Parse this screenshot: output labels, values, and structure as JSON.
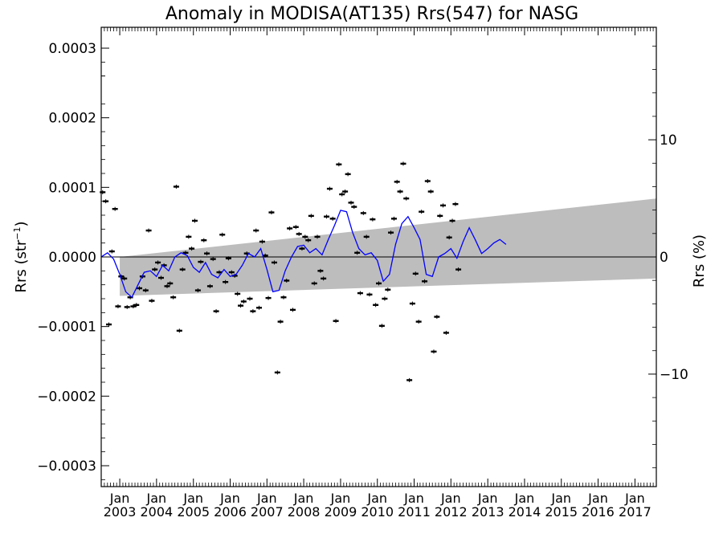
{
  "chart_data": {
    "type": "scatter",
    "title": "Anomaly in MODISA(AT135) Rrs(547) for NASG",
    "ylabel": "Rrs (str",
    "ylabel_sup": "−1",
    "ylabel_close": ")",
    "y2label": "Rrs (%)",
    "xlim": [
      "2002-07-01",
      "2017-08-01"
    ],
    "ylim": [
      -0.00033,
      0.00033
    ],
    "y2lim": [
      -19.6,
      19.6
    ],
    "yticks": [
      {
        "value": 0.0003,
        "label": "0.0003"
      },
      {
        "value": 0.0002,
        "label": "0.0002"
      },
      {
        "value": 0.0001,
        "label": "0.0001"
      },
      {
        "value": 0.0,
        "label": "0.0000"
      },
      {
        "value": -0.0001,
        "label": "−0.0001"
      },
      {
        "value": -0.0002,
        "label": "−0.0002"
      },
      {
        "value": -0.0003,
        "label": "−0.0003"
      }
    ],
    "y2ticks": [
      {
        "value": 10,
        "label": "10"
      },
      {
        "value": 0,
        "label": "0"
      },
      {
        "value": -10,
        "label": "−10"
      }
    ],
    "xticks": [
      {
        "date": "2003-01-01",
        "month": "Jan",
        "year": "2003"
      },
      {
        "date": "2004-01-01",
        "month": "Jan",
        "year": "2004"
      },
      {
        "date": "2005-01-01",
        "month": "Jan",
        "year": "2005"
      },
      {
        "date": "2006-01-01",
        "month": "Jan",
        "year": "2006"
      },
      {
        "date": "2007-01-01",
        "month": "Jan",
        "year": "2007"
      },
      {
        "date": "2008-01-01",
        "month": "Jan",
        "year": "2008"
      },
      {
        "date": "2009-01-01",
        "month": "Jan",
        "year": "2009"
      },
      {
        "date": "2010-01-01",
        "month": "Jan",
        "year": "2010"
      },
      {
        "date": "2011-01-01",
        "month": "Jan",
        "year": "2011"
      },
      {
        "date": "2012-01-01",
        "month": "Jan",
        "year": "2012"
      },
      {
        "date": "2013-01-01",
        "month": "Jan",
        "year": "2013"
      },
      {
        "date": "2014-01-01",
        "month": "Jan",
        "year": "2014"
      },
      {
        "date": "2015-01-01",
        "month": "Jan",
        "year": "2015"
      },
      {
        "date": "2016-01-01",
        "month": "Jan",
        "year": "2016"
      },
      {
        "date": "2017-01-01",
        "month": "Jan",
        "year": "2017"
      }
    ],
    "band": {
      "x": [
        "2003-01-01",
        "2017-08-01"
      ],
      "upper": [
        0.0,
        8.4e-05
      ],
      "lower": [
        -5.6e-05,
        -3.1e-05
      ]
    },
    "monthly_anomalies": [
      {
        "x": "2002-07-15",
        "y": 9.3e-05
      },
      {
        "x": "2002-08-15",
        "y": 8e-05
      },
      {
        "x": "2002-09-15",
        "y": -9.7e-05
      },
      {
        "x": "2002-10-15",
        "y": 8e-06
      },
      {
        "x": "2002-11-15",
        "y": 6.9e-05
      },
      {
        "x": "2002-12-15",
        "y": -7.1e-05
      },
      {
        "x": "2003-01-15",
        "y": -2.8e-05
      },
      {
        "x": "2003-02-15",
        "y": -3.1e-05
      },
      {
        "x": "2003-03-15",
        "y": -7.2e-05
      },
      {
        "x": "2003-04-15",
        "y": -5.8e-05
      },
      {
        "x": "2003-05-15",
        "y": -7.1e-05
      },
      {
        "x": "2003-06-15",
        "y": -6.9e-05
      },
      {
        "x": "2003-07-15",
        "y": -4.5e-05
      },
      {
        "x": "2003-08-15",
        "y": -2.8e-05
      },
      {
        "x": "2003-09-15",
        "y": -4.8e-05
      },
      {
        "x": "2003-10-15",
        "y": 3.8e-05
      },
      {
        "x": "2003-11-15",
        "y": -6.3e-05
      },
      {
        "x": "2003-12-15",
        "y": -1.8e-05
      },
      {
        "x": "2004-01-15",
        "y": -8e-06
      },
      {
        "x": "2004-02-15",
        "y": -3e-05
      },
      {
        "x": "2004-03-15",
        "y": -1.2e-05
      },
      {
        "x": "2004-04-15",
        "y": -4.2e-05
      },
      {
        "x": "2004-05-15",
        "y": -3.8e-05
      },
      {
        "x": "2004-06-15",
        "y": -5.8e-05
      },
      {
        "x": "2004-07-15",
        "y": 0.000101
      },
      {
        "x": "2004-08-15",
        "y": -0.000106
      },
      {
        "x": "2004-09-15",
        "y": -1.8e-05
      },
      {
        "x": "2004-10-15",
        "y": 6e-06
      },
      {
        "x": "2004-11-15",
        "y": 2.9e-05
      },
      {
        "x": "2004-12-15",
        "y": 1.2e-05
      },
      {
        "x": "2005-01-15",
        "y": 5.2e-05
      },
      {
        "x": "2005-02-15",
        "y": -4.8e-05
      },
      {
        "x": "2005-03-15",
        "y": -7e-06
      },
      {
        "x": "2005-04-15",
        "y": 2.4e-05
      },
      {
        "x": "2005-05-15",
        "y": 5e-06
      },
      {
        "x": "2005-06-15",
        "y": -4.2e-05
      },
      {
        "x": "2005-07-15",
        "y": -3e-06
      },
      {
        "x": "2005-08-15",
        "y": -7.8e-05
      },
      {
        "x": "2005-09-15",
        "y": -2.2e-05
      },
      {
        "x": "2005-10-15",
        "y": 3.2e-05
      },
      {
        "x": "2005-11-15",
        "y": -3.6e-05
      },
      {
        "x": "2005-12-15",
        "y": -2e-06
      },
      {
        "x": "2006-01-15",
        "y": -2.2e-05
      },
      {
        "x": "2006-02-15",
        "y": -2.7e-05
      },
      {
        "x": "2006-03-15",
        "y": -5.3e-05
      },
      {
        "x": "2006-04-15",
        "y": -7e-05
      },
      {
        "x": "2006-05-15",
        "y": -6.4e-05
      },
      {
        "x": "2006-06-15",
        "y": 5e-06
      },
      {
        "x": "2006-07-15",
        "y": -6e-05
      },
      {
        "x": "2006-08-15",
        "y": -7.8e-05
      },
      {
        "x": "2006-09-15",
        "y": 3.8e-05
      },
      {
        "x": "2006-10-15",
        "y": -7.3e-05
      },
      {
        "x": "2006-11-15",
        "y": 2.2e-05
      },
      {
        "x": "2006-12-15",
        "y": 2e-06
      },
      {
        "x": "2007-01-15",
        "y": -5.9e-05
      },
      {
        "x": "2007-02-15",
        "y": 6.4e-05
      },
      {
        "x": "2007-03-15",
        "y": -8e-06
      },
      {
        "x": "2007-04-15",
        "y": -0.000166
      },
      {
        "x": "2007-05-15",
        "y": -9.3e-05
      },
      {
        "x": "2007-06-15",
        "y": -5.8e-05
      },
      {
        "x": "2007-07-15",
        "y": -3.4e-05
      },
      {
        "x": "2007-08-15",
        "y": 4.1e-05
      },
      {
        "x": "2007-09-15",
        "y": -7.6e-05
      },
      {
        "x": "2007-10-15",
        "y": 4.3e-05
      },
      {
        "x": "2007-11-15",
        "y": 3.3e-05
      },
      {
        "x": "2007-12-15",
        "y": 1.2e-05
      },
      {
        "x": "2008-01-15",
        "y": 2.9e-05
      },
      {
        "x": "2008-02-15",
        "y": 2.4e-05
      },
      {
        "x": "2008-03-15",
        "y": 5.9e-05
      },
      {
        "x": "2008-04-15",
        "y": -3.8e-05
      },
      {
        "x": "2008-05-15",
        "y": 2.9e-05
      },
      {
        "x": "2008-06-15",
        "y": -2e-05
      },
      {
        "x": "2008-07-15",
        "y": -3.1e-05
      },
      {
        "x": "2008-08-15",
        "y": 5.8e-05
      },
      {
        "x": "2008-09-15",
        "y": 9.8e-05
      },
      {
        "x": "2008-10-15",
        "y": 5.5e-05
      },
      {
        "x": "2008-11-15",
        "y": -9.2e-05
      },
      {
        "x": "2008-12-15",
        "y": 0.000133
      },
      {
        "x": "2009-01-15",
        "y": 9e-05
      },
      {
        "x": "2009-02-15",
        "y": 9.4e-05
      },
      {
        "x": "2009-03-15",
        "y": 0.000119
      },
      {
        "x": "2009-04-15",
        "y": 7.8e-05
      },
      {
        "x": "2009-05-15",
        "y": 7.2e-05
      },
      {
        "x": "2009-06-15",
        "y": 6e-06
      },
      {
        "x": "2009-07-15",
        "y": -5.2e-05
      },
      {
        "x": "2009-08-15",
        "y": 6.3e-05
      },
      {
        "x": "2009-09-15",
        "y": 2.9e-05
      },
      {
        "x": "2009-10-15",
        "y": -5.4e-05
      },
      {
        "x": "2009-11-15",
        "y": 5.4e-05
      },
      {
        "x": "2009-12-15",
        "y": -6.9e-05
      },
      {
        "x": "2010-01-15",
        "y": -3.8e-05
      },
      {
        "x": "2010-02-15",
        "y": -9.9e-05
      },
      {
        "x": "2010-03-15",
        "y": -6e-05
      },
      {
        "x": "2010-04-15",
        "y": -4.7e-05
      },
      {
        "x": "2010-05-15",
        "y": 3.5e-05
      },
      {
        "x": "2010-06-15",
        "y": 5.5e-05
      },
      {
        "x": "2010-07-15",
        "y": 0.000108
      },
      {
        "x": "2010-08-15",
        "y": 9.4e-05
      },
      {
        "x": "2010-09-15",
        "y": 0.000134
      },
      {
        "x": "2010-10-15",
        "y": 8.4e-05
      },
      {
        "x": "2010-11-15",
        "y": -0.000177
      },
      {
        "x": "2010-12-15",
        "y": -6.7e-05
      },
      {
        "x": "2011-01-15",
        "y": -2.4e-05
      },
      {
        "x": "2011-02-15",
        "y": -9.3e-05
      },
      {
        "x": "2011-03-15",
        "y": 6.5e-05
      },
      {
        "x": "2011-04-15",
        "y": -3.5e-05
      },
      {
        "x": "2011-05-15",
        "y": 0.000109
      },
      {
        "x": "2011-06-15",
        "y": 9.4e-05
      },
      {
        "x": "2011-07-15",
        "y": -0.000136
      },
      {
        "x": "2011-08-15",
        "y": -8.6e-05
      },
      {
        "x": "2011-09-15",
        "y": 5.9e-05
      },
      {
        "x": "2011-10-15",
        "y": 7.4e-05
      },
      {
        "x": "2011-11-15",
        "y": -0.000109
      },
      {
        "x": "2011-12-15",
        "y": 2.8e-05
      },
      {
        "x": "2012-01-15",
        "y": 5.2e-05
      },
      {
        "x": "2012-02-15",
        "y": 7.6e-05
      },
      {
        "x": "2012-03-15",
        "y": -1.8e-05
      }
    ],
    "series": [
      {
        "points": [
          {
            "x": "2002-07-01",
            "y": 0.0
          },
          {
            "x": "2002-09-01",
            "y": 6e-06
          },
          {
            "x": "2002-11-01",
            "y": -3e-06
          },
          {
            "x": "2003-01-01",
            "y": -2.5e-05
          },
          {
            "x": "2003-03-01",
            "y": -5e-05
          },
          {
            "x": "2003-05-01",
            "y": -5.8e-05
          },
          {
            "x": "2003-07-01",
            "y": -4e-05
          },
          {
            "x": "2003-09-01",
            "y": -2.2e-05
          },
          {
            "x": "2003-11-01",
            "y": -2e-05
          },
          {
            "x": "2004-01-01",
            "y": -2.8e-05
          },
          {
            "x": "2004-03-01",
            "y": -1.2e-05
          },
          {
            "x": "2004-05-01",
            "y": -2e-05
          },
          {
            "x": "2004-07-01",
            "y": 0.0
          },
          {
            "x": "2004-09-01",
            "y": 6e-06
          },
          {
            "x": "2004-11-01",
            "y": 2e-06
          },
          {
            "x": "2005-01-01",
            "y": -1.5e-05
          },
          {
            "x": "2005-03-01",
            "y": -2.2e-05
          },
          {
            "x": "2005-05-01",
            "y": -8e-06
          },
          {
            "x": "2005-07-01",
            "y": -2.5e-05
          },
          {
            "x": "2005-09-01",
            "y": -3e-05
          },
          {
            "x": "2005-11-01",
            "y": -1.8e-05
          },
          {
            "x": "2006-01-01",
            "y": -2.8e-05
          },
          {
            "x": "2006-03-01",
            "y": -2.5e-05
          },
          {
            "x": "2006-05-01",
            "y": -1.2e-05
          },
          {
            "x": "2006-07-01",
            "y": 5e-06
          },
          {
            "x": "2006-09-01",
            "y": 0.0
          },
          {
            "x": "2006-11-01",
            "y": 1.2e-05
          },
          {
            "x": "2007-01-01",
            "y": -1.8e-05
          },
          {
            "x": "2007-03-01",
            "y": -5e-05
          },
          {
            "x": "2007-05-01",
            "y": -4.8e-05
          },
          {
            "x": "2007-07-01",
            "y": -2e-05
          },
          {
            "x": "2007-09-01",
            "y": 0.0
          },
          {
            "x": "2007-11-01",
            "y": 1.5e-05
          },
          {
            "x": "2008-01-01",
            "y": 1.7e-05
          },
          {
            "x": "2008-03-01",
            "y": 6e-06
          },
          {
            "x": "2008-05-01",
            "y": 1.2e-05
          },
          {
            "x": "2008-07-01",
            "y": 3e-06
          },
          {
            "x": "2008-09-01",
            "y": 2.5e-05
          },
          {
            "x": "2008-11-01",
            "y": 4.5e-05
          },
          {
            "x": "2009-01-01",
            "y": 6.7e-05
          },
          {
            "x": "2009-03-01",
            "y": 6.5e-05
          },
          {
            "x": "2009-05-01",
            "y": 3.5e-05
          },
          {
            "x": "2009-07-01",
            "y": 1.2e-05
          },
          {
            "x": "2009-09-01",
            "y": 3e-06
          },
          {
            "x": "2009-11-01",
            "y": 6e-06
          },
          {
            "x": "2010-01-01",
            "y": -5e-06
          },
          {
            "x": "2010-03-01",
            "y": -3.5e-05
          },
          {
            "x": "2010-05-01",
            "y": -2.5e-05
          },
          {
            "x": "2010-07-01",
            "y": 1.8e-05
          },
          {
            "x": "2010-09-01",
            "y": 4.8e-05
          },
          {
            "x": "2010-11-01",
            "y": 5.8e-05
          },
          {
            "x": "2011-01-01",
            "y": 4.2e-05
          },
          {
            "x": "2011-03-01",
            "y": 2.5e-05
          },
          {
            "x": "2011-05-01",
            "y": -2.5e-05
          },
          {
            "x": "2011-07-01",
            "y": -2.8e-05
          },
          {
            "x": "2011-09-01",
            "y": 0.0
          },
          {
            "x": "2011-11-01",
            "y": 5e-06
          },
          {
            "x": "2012-01-01",
            "y": 1.2e-05
          },
          {
            "x": "2012-03-01",
            "y": -2e-06
          },
          {
            "x": "2012-05-01",
            "y": 2.2e-05
          },
          {
            "x": "2012-07-01",
            "y": 4.2e-05
          },
          {
            "x": "2012-09-01",
            "y": 2.4e-05
          },
          {
            "x": "2012-11-01",
            "y": 5e-06
          },
          {
            "x": "2013-01-01",
            "y": 1.2e-05
          },
          {
            "x": "2013-03-01",
            "y": 2e-05
          },
          {
            "x": "2013-05-01",
            "y": 2.5e-05
          },
          {
            "x": "2013-07-01",
            "y": 1.8e-05
          }
        ],
        "color": "#0000ff"
      }
    ],
    "band_color": "#bdbdbd",
    "grid": false,
    "legend": "none"
  }
}
